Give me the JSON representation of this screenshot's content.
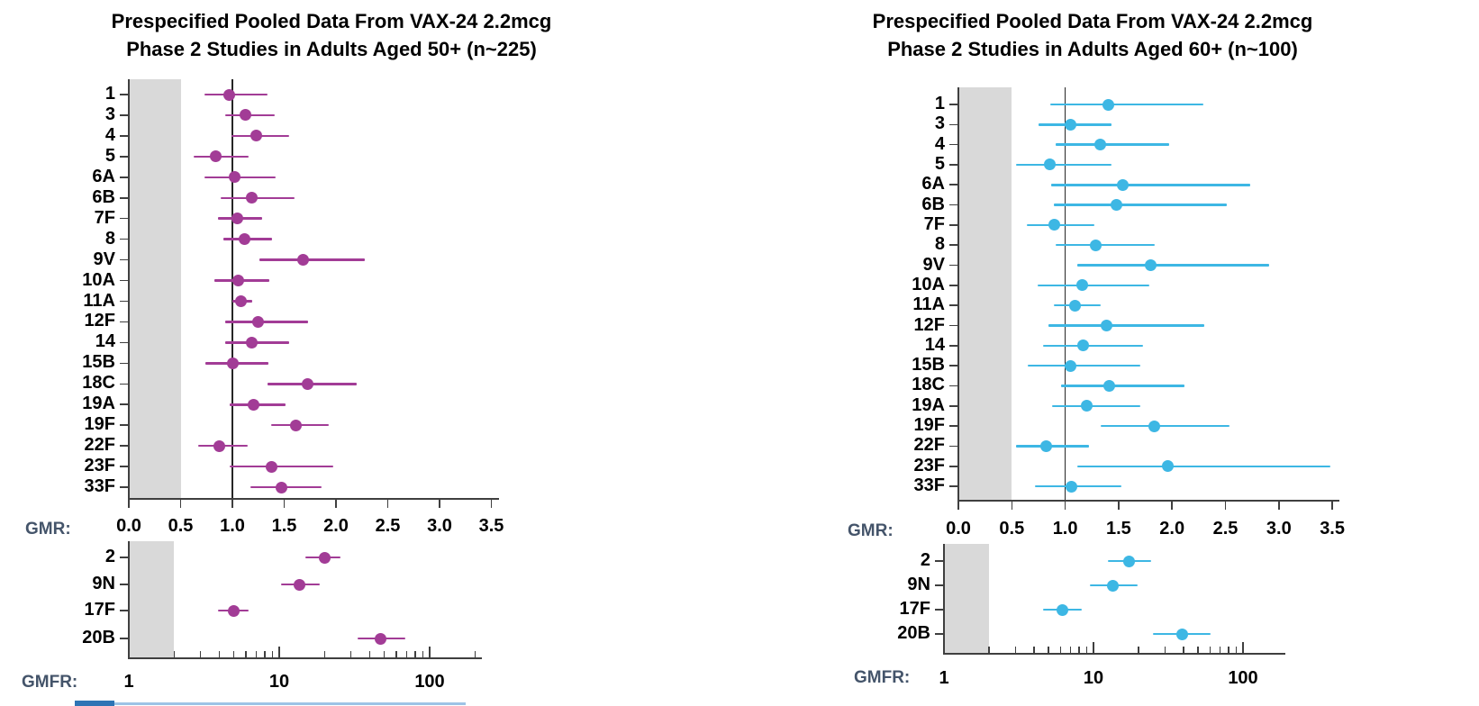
{
  "footer_strip": {
    "dark_color": "#2E74B5",
    "light_color": "#9DC3E6"
  },
  "chart_data": [
    {
      "type": "scatter",
      "variant": "forest-plot",
      "title_line1": "Prespecified Pooled Data From VAX-24 2.2mcg",
      "title_line2": "Phase 2 Studies in Adults Aged 50+ (n~225)",
      "marker_color": "#A23C96",
      "shade_color": "#D9D9D9",
      "legend_position": "none",
      "panels": [
        {
          "axis_label": "GMR:",
          "xscale": "linear",
          "xlim": [
            0,
            3.5
          ],
          "xticks": [
            0,
            0.5,
            1,
            1.5,
            2,
            2.5,
            3,
            3.5
          ],
          "reference_line": 1.0,
          "shaded_region": [
            0,
            0.5
          ],
          "grid": false,
          "categories": [
            "1",
            "3",
            "4",
            "5",
            "6A",
            "6B",
            "7F",
            "8",
            "9V",
            "10A",
            "11A",
            "12F",
            "14",
            "15B",
            "18C",
            "19A",
            "19F",
            "22F",
            "23F",
            "33F"
          ],
          "values": [
            0.97,
            1.13,
            1.23,
            0.84,
            1.02,
            1.19,
            1.05,
            1.12,
            1.68,
            1.06,
            1.08,
            1.25,
            1.19,
            1.0,
            1.73,
            1.2,
            1.61,
            0.87,
            1.38,
            1.47
          ],
          "ci_low": [
            0.73,
            0.93,
            0.99,
            0.63,
            0.73,
            0.89,
            0.86,
            0.91,
            1.26,
            0.83,
            1.0,
            0.93,
            0.93,
            0.74,
            1.34,
            0.97,
            1.37,
            0.67,
            0.97,
            1.17
          ],
          "ci_high": [
            1.34,
            1.41,
            1.55,
            1.16,
            1.42,
            1.6,
            1.29,
            1.38,
            2.28,
            1.36,
            1.19,
            1.73,
            1.55,
            1.35,
            2.2,
            1.51,
            1.93,
            1.15,
            1.97,
            1.86
          ]
        },
        {
          "axis_label": "GMFR:",
          "xscale": "log",
          "xlim": [
            1,
            200
          ],
          "xticks": [
            1,
            10,
            100
          ],
          "shaded_region": [
            1,
            2
          ],
          "grid": false,
          "categories": [
            "2",
            "9N",
            "17F",
            "20B"
          ],
          "values": [
            20.0,
            13.7,
            5.0,
            47
          ],
          "ci_low": [
            15.0,
            10.3,
            3.9,
            33
          ],
          "ci_high": [
            25.5,
            18.6,
            6.3,
            69
          ]
        }
      ]
    },
    {
      "type": "scatter",
      "variant": "forest-plot",
      "title_line1": "Prespecified Pooled Data From VAX-24 2.2mcg",
      "title_line2": "Phase 2 Studies in Adults Aged 60+ (n~100)",
      "marker_color": "#3DB7E4",
      "shade_color": "#D9D9D9",
      "legend_position": "none",
      "panels": [
        {
          "axis_label": "GMR:",
          "xscale": "linear",
          "xlim": [
            0,
            3.5
          ],
          "xticks": [
            0,
            0.5,
            1,
            1.5,
            2,
            2.5,
            3,
            3.5
          ],
          "reference_line": 1.0,
          "shaded_region": [
            0,
            0.5
          ],
          "grid": false,
          "categories": [
            "1",
            "3",
            "4",
            "5",
            "6A",
            "6B",
            "7F",
            "8",
            "9V",
            "10A",
            "11A",
            "12F",
            "14",
            "15B",
            "18C",
            "19A",
            "19F",
            "22F",
            "23F",
            "33F"
          ],
          "values": [
            1.4,
            1.05,
            1.33,
            0.86,
            1.54,
            1.48,
            0.9,
            1.29,
            1.8,
            1.16,
            1.09,
            1.39,
            1.17,
            1.05,
            1.41,
            1.2,
            1.83,
            0.82,
            1.96,
            1.06
          ],
          "ci_low": [
            0.86,
            0.75,
            0.91,
            0.54,
            0.87,
            0.89,
            0.64,
            0.91,
            1.11,
            0.74,
            0.89,
            0.84,
            0.79,
            0.65,
            0.96,
            0.88,
            1.33,
            0.54,
            1.11,
            0.72
          ],
          "ci_high": [
            2.29,
            1.43,
            1.97,
            1.43,
            2.73,
            2.51,
            1.27,
            1.84,
            2.91,
            1.79,
            1.33,
            2.3,
            1.73,
            1.7,
            2.12,
            1.7,
            2.54,
            1.22,
            3.48,
            1.53
          ]
        },
        {
          "axis_label": "GMFR:",
          "xscale": "log",
          "xlim": [
            1,
            200
          ],
          "xticks": [
            1,
            10,
            100
          ],
          "shaded_region": [
            1,
            2
          ],
          "grid": false,
          "categories": [
            "2",
            "9N",
            "17F",
            "20B"
          ],
          "values": [
            17.3,
            13.4,
            6.2,
            39
          ],
          "ci_low": [
            12.5,
            9.5,
            4.6,
            25
          ],
          "ci_high": [
            24.2,
            19.8,
            8.4,
            61
          ]
        }
      ]
    }
  ]
}
